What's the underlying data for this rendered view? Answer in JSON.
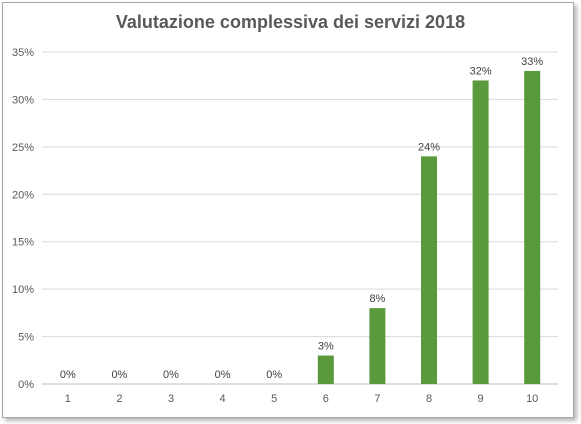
{
  "chart_data": {
    "type": "bar",
    "title": "Valutazione complessiva dei servizi 2018",
    "categories": [
      "1",
      "2",
      "3",
      "4",
      "5",
      "6",
      "7",
      "8",
      "9",
      "10"
    ],
    "values": [
      0,
      0,
      0,
      0,
      0,
      3,
      8,
      24,
      32,
      33
    ],
    "data_labels": [
      "0%",
      "0%",
      "0%",
      "0%",
      "0%",
      "3%",
      "8%",
      "24%",
      "32%",
      "33%"
    ],
    "y_ticks": [
      "0%",
      "5%",
      "10%",
      "15%",
      "20%",
      "25%",
      "30%",
      "35%"
    ],
    "ylim": [
      0,
      35
    ],
    "xlabel": "",
    "ylabel": "",
    "grid": true,
    "legend": "none",
    "bar_color": "#5b9a3c"
  }
}
